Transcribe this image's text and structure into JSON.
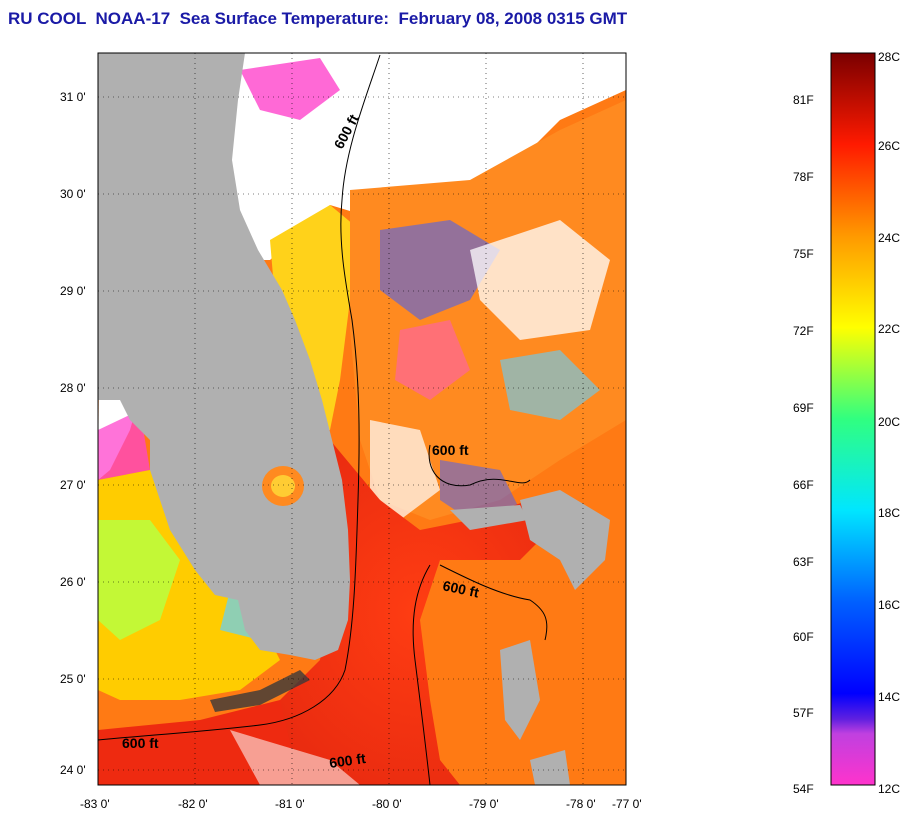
{
  "title": "RU COOL  NOAA-17  Sea Surface Temperature:  February 08, 2008 0315 GMT",
  "map": {
    "lat_labels": [
      "31 0'",
      "30 0'",
      "29 0'",
      "28 0'",
      "27 0'",
      "26 0'",
      "25 0'",
      "24 0'"
    ],
    "lon_labels": [
      "-83 0'",
      "-82 0'",
      "-81 0'",
      "-80 0'",
      "-79 0'",
      "-78 0'",
      "-77 0'"
    ],
    "contour_labels": [
      "600 ft",
      "600 ft",
      "600 ft",
      "600 ft",
      "600 ft"
    ]
  },
  "colorbar": {
    "fahrenheit_labels": [
      "81F",
      "78F",
      "75F",
      "72F",
      "69F",
      "66F",
      "63F",
      "60F",
      "57F",
      "54F"
    ],
    "celsius_labels": [
      "28C",
      "26C",
      "24C",
      "22C",
      "20C",
      "18C",
      "16C",
      "14C",
      "12C"
    ]
  },
  "colors": {
    "title": "#1a1aa6",
    "land": "#b0b0b0",
    "cloud": "#ffffff",
    "gulf_stream": "#ee2a10",
    "shelf_warm": "#ff7a14"
  }
}
